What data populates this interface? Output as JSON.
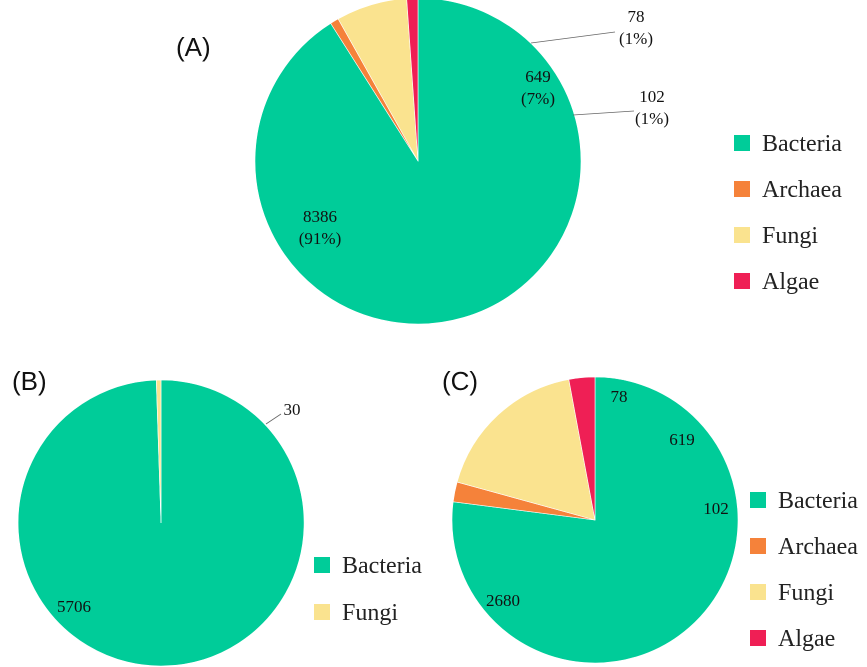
{
  "colors": {
    "Bacteria": "#00CC99",
    "Archaea": "#F5823A",
    "Fungi": "#FAE38F",
    "Algae": "#EF1F55"
  },
  "chart_data": [
    {
      "type": "pie",
      "panel": "(A)",
      "categories": [
        "Bacteria",
        "Archaea",
        "Fungi",
        "Algae"
      ],
      "values": [
        8386,
        78,
        649,
        102
      ],
      "labels": [
        {
          "category": "Bacteria",
          "value": "8386",
          "percent": "(91%)"
        },
        {
          "category": "Archaea",
          "value": "78",
          "percent": "(1%)"
        },
        {
          "category": "Fungi",
          "value": "649",
          "percent": "(7%)"
        },
        {
          "category": "Algae",
          "value": "102",
          "percent": "(1%)"
        }
      ],
      "legend": [
        "Bacteria",
        "Archaea",
        "Fungi",
        "Algae"
      ],
      "legend_position": "right"
    },
    {
      "type": "pie",
      "panel": "(B)",
      "categories": [
        "Bacteria",
        "Fungi"
      ],
      "values": [
        5706,
        30
      ],
      "labels": [
        {
          "category": "Bacteria",
          "value": "5706"
        },
        {
          "category": "Fungi",
          "value": "30"
        }
      ],
      "legend": [
        "Bacteria",
        "Fungi"
      ],
      "legend_position": "right"
    },
    {
      "type": "pie",
      "panel": "(C)",
      "categories": [
        "Bacteria",
        "Archaea",
        "Fungi",
        "Algae"
      ],
      "values": [
        2680,
        78,
        619,
        102
      ],
      "labels": [
        {
          "category": "Bacteria",
          "value": "2680"
        },
        {
          "category": "Archaea",
          "value": "78"
        },
        {
          "category": "Fungi",
          "value": "619"
        },
        {
          "category": "Algae",
          "value": "102"
        }
      ],
      "legend": [
        "Bacteria",
        "Archaea",
        "Fungi",
        "Algae"
      ],
      "legend_position": "right"
    }
  ]
}
